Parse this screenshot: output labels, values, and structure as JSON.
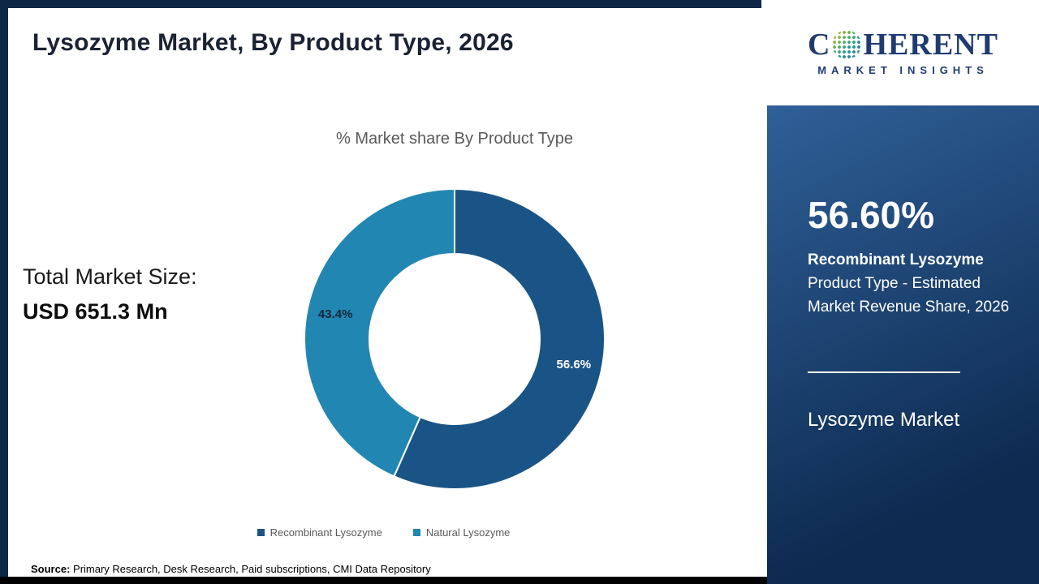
{
  "header": {
    "title": "Lysozyme Market, By Product Type, 2026"
  },
  "logo": {
    "prefix": "C",
    "suffix": "HERENT",
    "subtitle": "MARKET INSIGHTS"
  },
  "left_panel": {
    "total_label": "Total Market Size:",
    "total_value": "USD 651.3 Mn"
  },
  "chart_data": {
    "type": "pie",
    "donut": true,
    "title": "% Market share By Product Type",
    "categories": [
      "Recombinant Lysozyme",
      "Natural Lysozyme"
    ],
    "values": [
      56.6,
      43.4
    ],
    "slice_labels": [
      "56.6%",
      "43.4%"
    ],
    "colors": [
      "#1a5486",
      "#2286b2"
    ],
    "slice_label_colors": [
      "#ffffff",
      "#13273a"
    ],
    "legend_position": "bottom",
    "start_angle_deg": -90
  },
  "right_panel": {
    "stat_value": "56.60%",
    "stat_label_bold": "Recombinant Lysozyme",
    "stat_label_rest": "Product Type - Estimated Market Revenue Share, 2026",
    "panel_footer": "Lysozyme Market"
  },
  "footer": {
    "source_label": "Source:",
    "source_text": "Primary Research, Desk Research, Paid subscriptions, CMI Data Repository"
  },
  "theme": {
    "frame_color": "#0f2747",
    "logo_navy": "#1f3b70",
    "panel_gradient_start": "#2f6098",
    "panel_gradient_end": "#0d2a50"
  }
}
